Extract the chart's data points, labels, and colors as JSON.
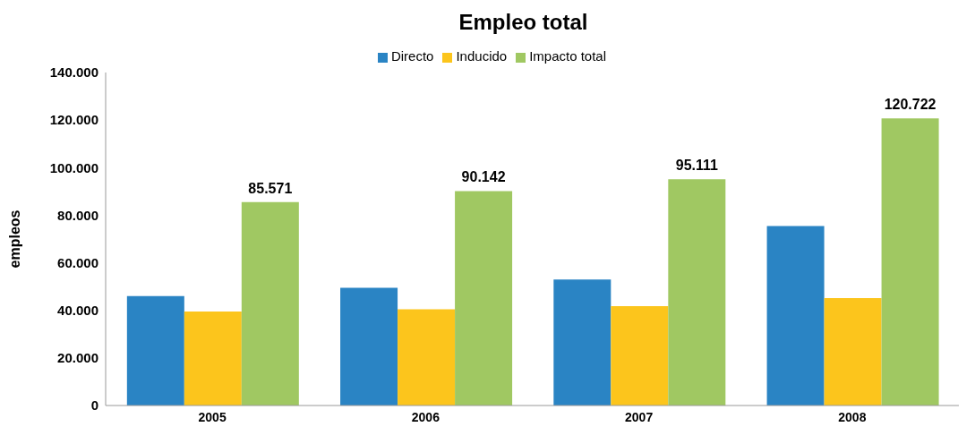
{
  "chart_data": {
    "type": "bar",
    "title": "Empleo total",
    "ylabel": "empleos",
    "categories": [
      "2005",
      "2006",
      "2007",
      "2008"
    ],
    "series": [
      {
        "name": "Directo",
        "color": "#2a84c4",
        "values": [
          46000,
          49500,
          53000,
          75500
        ]
      },
      {
        "name": "Inducido",
        "color": "#fcc51c",
        "values": [
          39500,
          40500,
          41800,
          45200
        ]
      },
      {
        "name": "Impacto total",
        "color": "#a0c862",
        "values": [
          85571,
          90142,
          95111,
          120722
        ],
        "value_labels": [
          "85.571",
          "90.142",
          "95.111",
          "120.722"
        ]
      }
    ],
    "ylim": [
      0,
      140000
    ],
    "yticks": [
      {
        "value": 0,
        "label": "0"
      },
      {
        "value": 20000,
        "label": "20.000"
      },
      {
        "value": 40000,
        "label": "40.000"
      },
      {
        "value": 60000,
        "label": "60.000"
      },
      {
        "value": 80000,
        "label": "80.000"
      },
      {
        "value": 100000,
        "label": "100.000"
      },
      {
        "value": 120000,
        "label": "120.000"
      },
      {
        "value": 140000,
        "label": "140.000"
      }
    ],
    "grid": false,
    "legend": "top"
  }
}
